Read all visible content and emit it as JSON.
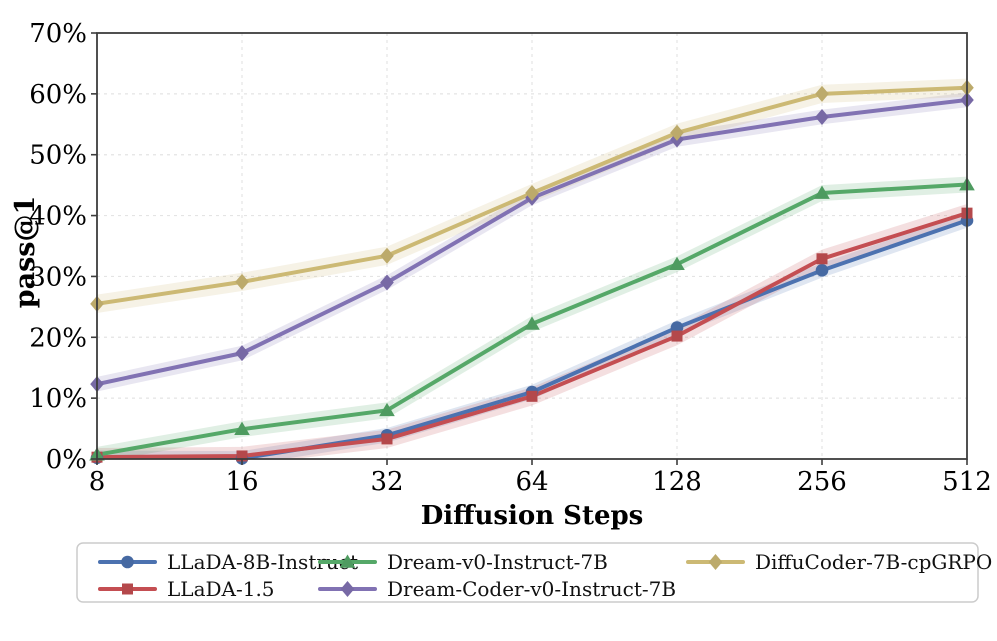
{
  "chart_data": {
    "type": "line",
    "title": "",
    "xlabel": "Diffusion Steps",
    "ylabel": "pass@1",
    "x_scale": "log2",
    "x": [
      8,
      16,
      32,
      64,
      128,
      256,
      512
    ],
    "x_tick_labels": [
      "8",
      "16",
      "32",
      "64",
      "128",
      "256",
      "512"
    ],
    "y_ticks": [
      0,
      10,
      20,
      30,
      40,
      50,
      60,
      70
    ],
    "y_tick_suffix": "%",
    "ylim": [
      0,
      70
    ],
    "grid": true,
    "legend_position": "bottom",
    "axis_color": "#3d3d3d",
    "gridline_color": "#e4e4e4",
    "series": [
      {
        "id": "llada-8b-instruct",
        "name": "LLaDA-8B-Instruct",
        "color": "#4C72B0",
        "marker": "circle",
        "band": 1.2,
        "values": [
          0.2,
          0.1,
          3.9,
          11.0,
          21.6,
          31.0,
          39.2
        ]
      },
      {
        "id": "llada-1-5",
        "name": "LLaDA-1.5",
        "color": "#C44E52",
        "marker": "square",
        "band": 1.5,
        "values": [
          0.3,
          0.5,
          3.3,
          10.3,
          20.2,
          32.9,
          40.4
        ]
      },
      {
        "id": "dream-v0-instruct-7b",
        "name": "Dream-v0-Instruct-7B",
        "color": "#55A868",
        "marker": "triangle",
        "band": 1.3,
        "values": [
          0.7,
          4.9,
          8.0,
          22.2,
          32.0,
          43.7,
          45.1
        ]
      },
      {
        "id": "dream-coder-v0-instruct-7b",
        "name": "Dream-Coder-v0-Instruct-7B",
        "color": "#8172B3",
        "marker": "diamond",
        "band": 1.2,
        "values": [
          12.3,
          17.4,
          29.0,
          42.9,
          52.5,
          56.2,
          59.0
        ]
      },
      {
        "id": "diffucoder-7b-cpgrpo",
        "name": "DiffuCoder-7B-cpGRPO",
        "color": "#CCB974",
        "marker": "diamond",
        "band": 1.5,
        "values": [
          25.5,
          29.1,
          33.4,
          43.7,
          53.6,
          60.0,
          61.0
        ]
      }
    ]
  }
}
